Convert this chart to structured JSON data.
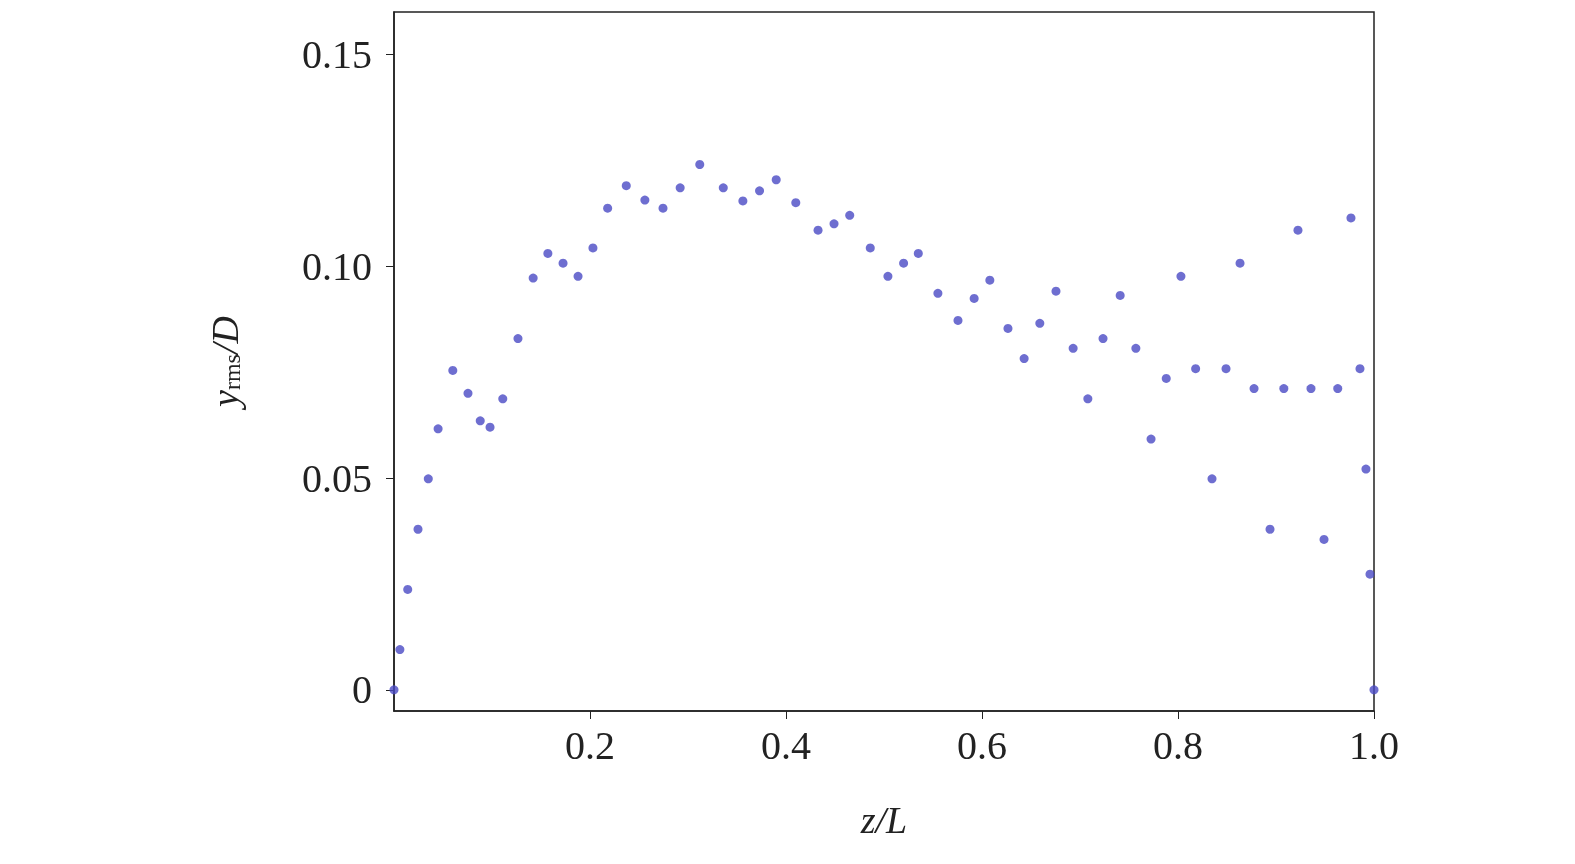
{
  "chart_data": {
    "type": "scatter",
    "xlabel": "z/L",
    "ylabel": "y$_{rms}$/D",
    "marker": "circle",
    "grid": false,
    "xlim": [
      0,
      1.0
    ],
    "xticks": [
      0.2,
      0.4,
      0.6,
      0.8,
      {
        "value": 1.0,
        "label": "1.0"
      }
    ],
    "ylim": [
      -0.005,
      0.16
    ],
    "yticks": [
      0,
      {
        "value": 0.05,
        "label": "0.05"
      },
      {
        "value": 0.1,
        "label": "0.10"
      },
      {
        "value": 0.15,
        "label": "0.15"
      }
    ],
    "series": [
      {
        "color": "#4a4ac4",
        "x": [
          0,
          0.006,
          0.014,
          0.0245,
          0.035,
          0.045,
          0.06,
          0.0755,
          0.088,
          0.098,
          0.111,
          0.1265,
          0.142,
          0.157,
          0.1725,
          0.1878,
          0.203,
          0.218,
          0.237,
          0.256,
          0.2745,
          0.292,
          0.312,
          0.336,
          0.356,
          0.373,
          0.39,
          0.41,
          0.4327,
          0.449,
          0.465,
          0.486,
          0.504,
          0.52,
          0.535,
          0.555,
          0.5755,
          0.592,
          0.608,
          0.6265,
          0.643,
          0.659,
          0.6755,
          0.693,
          0.708,
          0.7235,
          0.741,
          0.757,
          0.7725,
          0.788,
          0.803,
          0.818,
          0.8347,
          0.849,
          0.8633,
          0.8776,
          0.8939,
          0.908,
          0.9224,
          0.9357,
          0.949,
          0.963,
          0.9765,
          0.9857,
          0.9918,
          0.9959,
          1.0
        ],
        "values": [
          0,
          0.0095,
          0.0237,
          0.0379,
          0.0498,
          0.0616,
          0.0754,
          0.07,
          0.0635,
          0.062,
          0.0687,
          0.0829,
          0.0972,
          0.103,
          0.1007,
          0.0976,
          0.1043,
          0.1137,
          0.119,
          0.1156,
          0.1137,
          0.1185,
          0.124,
          0.1185,
          0.1154,
          0.1178,
          0.1204,
          0.115,
          0.1085,
          0.11,
          0.112,
          0.1043,
          0.0976,
          0.1007,
          0.103,
          0.0936,
          0.0872,
          0.0924,
          0.0967,
          0.0853,
          0.0782,
          0.0865,
          0.0941,
          0.0806,
          0.0687,
          0.0829,
          0.0931,
          0.0806,
          0.0592,
          0.0735,
          0.0976,
          0.0758,
          0.0498,
          0.0758,
          0.1007,
          0.0711,
          0.0379,
          0.0711,
          0.1085,
          0.0711,
          0.0355,
          0.0711,
          0.1114,
          0.0758,
          0.0521,
          0.0273,
          0
        ]
      }
    ]
  }
}
